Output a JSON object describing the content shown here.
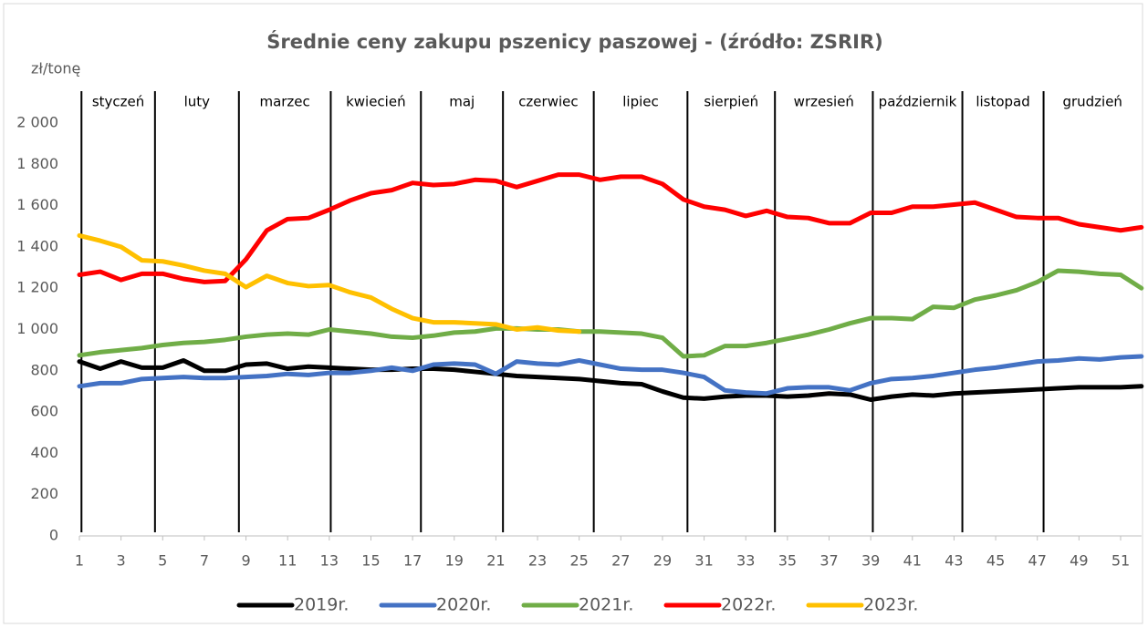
{
  "chart_data": {
    "type": "line",
    "title": "Średnie ceny zakupu pszenicy paszowej - (źródło: ZSRIR)",
    "y_label": "zł/tonę",
    "x": [
      1,
      2,
      3,
      4,
      5,
      6,
      7,
      8,
      9,
      10,
      11,
      12,
      13,
      14,
      15,
      16,
      17,
      18,
      19,
      20,
      21,
      22,
      23,
      24,
      25,
      26,
      27,
      28,
      29,
      30,
      31,
      32,
      33,
      34,
      35,
      36,
      37,
      38,
      39,
      40,
      41,
      42,
      43,
      44,
      45,
      46,
      47,
      48,
      49,
      50,
      51,
      52
    ],
    "xlim": [
      1,
      52
    ],
    "xticks": [
      1,
      3,
      5,
      7,
      9,
      11,
      13,
      15,
      17,
      19,
      21,
      23,
      25,
      27,
      29,
      31,
      33,
      35,
      37,
      39,
      41,
      43,
      45,
      47,
      49,
      51
    ],
    "ylim": [
      0,
      2000
    ],
    "yticks": [
      0,
      200,
      400,
      600,
      800,
      {
        "value": 1000,
        "label": "1 000"
      },
      {
        "value": 1200,
        "label": "1 200"
      },
      {
        "value": 1400,
        "label": "1 400"
      },
      {
        "value": 1600,
        "label": "1 600"
      },
      {
        "value": 1800,
        "label": "1 800"
      },
      {
        "value": 2000,
        "label": "2 000"
      }
    ],
    "grid": false,
    "months": [
      "styczeń",
      "luty",
      "marzec",
      "kwiecień",
      "maj",
      "czerwiec",
      "lipiec",
      "sierpień",
      "wrzesień",
      "październik",
      "listopad",
      "grudzień"
    ],
    "month_boundaries": [
      1.1,
      4.63,
      8.66,
      13.07,
      17.4,
      21.34,
      25.7,
      30.2,
      34.4,
      39.1,
      43.4,
      47.3
    ],
    "series": [
      {
        "name": "2019r.",
        "color": "#000000",
        "values": [
          845,
          810,
          845,
          815,
          815,
          850,
          800,
          800,
          830,
          835,
          810,
          820,
          815,
          810,
          805,
          805,
          810,
          810,
          805,
          795,
          785,
          775,
          770,
          765,
          760,
          750,
          740,
          735,
          700,
          670,
          665,
          675,
          680,
          680,
          675,
          680,
          690,
          685,
          660,
          675,
          685,
          680,
          690,
          695,
          700,
          705,
          710,
          715,
          720,
          720,
          720,
          725
        ]
      },
      {
        "name": "2020r.",
        "color": "#4472c4",
        "values": [
          725,
          740,
          740,
          760,
          765,
          770,
          765,
          765,
          770,
          775,
          785,
          780,
          790,
          790,
          800,
          815,
          800,
          830,
          835,
          830,
          785,
          845,
          835,
          830,
          850,
          830,
          810,
          805,
          805,
          790,
          770,
          705,
          695,
          690,
          715,
          720,
          720,
          705,
          740,
          760,
          765,
          775,
          790,
          805,
          815,
          830,
          845,
          850,
          860,
          855,
          865,
          870
        ]
      },
      {
        "name": "2021r.",
        "color": "#70ad47",
        "values": [
          875,
          890,
          900,
          910,
          925,
          935,
          940,
          950,
          965,
          975,
          980,
          975,
          1000,
          990,
          980,
          965,
          960,
          970,
          985,
          990,
          1005,
          1005,
          1000,
          1000,
          990,
          990,
          985,
          980,
          960,
          870,
          875,
          920,
          920,
          935,
          955,
          975,
          1000,
          1030,
          1055,
          1055,
          1050,
          1110,
          1105,
          1145,
          1165,
          1190,
          1230,
          1285,
          1280,
          1270,
          1265,
          1200
        ]
      },
      {
        "name": "2022r.",
        "color": "#ff0000",
        "values": [
          1265,
          1280,
          1240,
          1270,
          1270,
          1245,
          1230,
          1235,
          1340,
          1480,
          1535,
          1540,
          1580,
          1625,
          1660,
          1675,
          1710,
          1700,
          1705,
          1725,
          1720,
          1690,
          1720,
          1750,
          1750,
          1725,
          1740,
          1740,
          1705,
          1630,
          1595,
          1580,
          1550,
          1575,
          1545,
          1540,
          1515,
          1515,
          1565,
          1565,
          1595,
          1595,
          1605,
          1615,
          1580,
          1545,
          1540,
          1540,
          1510,
          1495,
          1480,
          1495
        ]
      },
      {
        "name": "2023r.",
        "color": "#ffc000",
        "values": [
          1455,
          1430,
          1400,
          1335,
          1330,
          1310,
          1285,
          1270,
          1205,
          1260,
          1225,
          1210,
          1215,
          1180,
          1155,
          1100,
          1055,
          1035,
          1035,
          1030,
          1025,
          1000,
          1010,
          995,
          990,
          null,
          null,
          null,
          null,
          null,
          null,
          null,
          null,
          null,
          null,
          null,
          null,
          null,
          null,
          null,
          null,
          null,
          null,
          null,
          null,
          null,
          null,
          null,
          null,
          null,
          null,
          null
        ]
      }
    ]
  }
}
